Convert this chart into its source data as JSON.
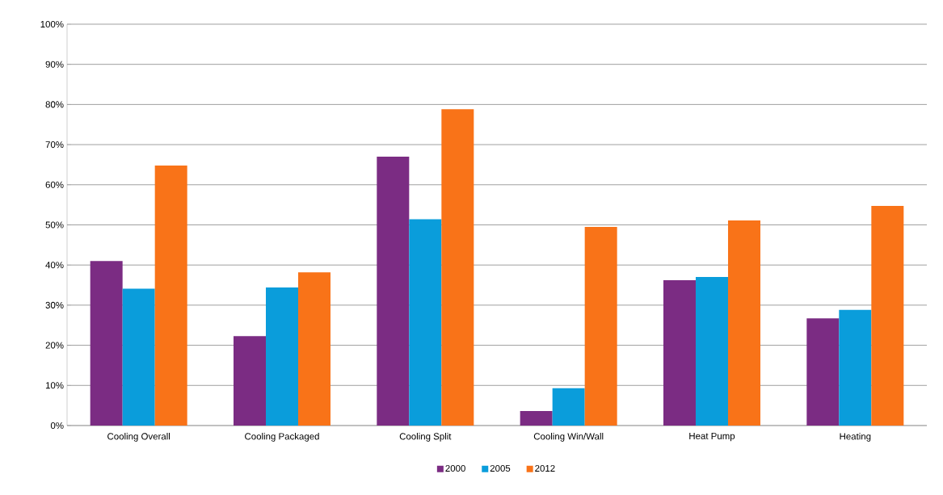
{
  "chart_data": {
    "type": "bar",
    "categories": [
      "Cooling Overall",
      "Cooling Packaged",
      "Cooling Split",
      "Cooling Win/Wall",
      "Heat Pump",
      "Heating"
    ],
    "series": [
      {
        "name": "2000",
        "color": "#7b2c83",
        "values": [
          41,
          22.3,
          67,
          3.6,
          36.2,
          26.7
        ]
      },
      {
        "name": "2005",
        "color": "#0a9ddb",
        "values": [
          34.1,
          34.4,
          51.4,
          9.3,
          37,
          28.8
        ]
      },
      {
        "name": "2012",
        "color": "#f97318",
        "values": [
          64.8,
          38.2,
          78.8,
          49.5,
          51.1,
          54.7
        ]
      }
    ],
    "ylim": [
      0,
      100
    ],
    "yticks": [
      {
        "value": 0,
        "label": "0%"
      },
      {
        "value": 10,
        "label": "10%"
      },
      {
        "value": 20,
        "label": "20%"
      },
      {
        "value": 30,
        "label": "30%"
      },
      {
        "value": 40,
        "label": "40%"
      },
      {
        "value": 50,
        "label": "50%"
      },
      {
        "value": 60,
        "label": "60%"
      },
      {
        "value": 70,
        "label": "70%"
      },
      {
        "value": 80,
        "label": "80%"
      },
      {
        "value": 90,
        "label": "90%"
      },
      {
        "value": 100,
        "label": "100%"
      }
    ],
    "grid": "y",
    "legend": "bottom"
  }
}
